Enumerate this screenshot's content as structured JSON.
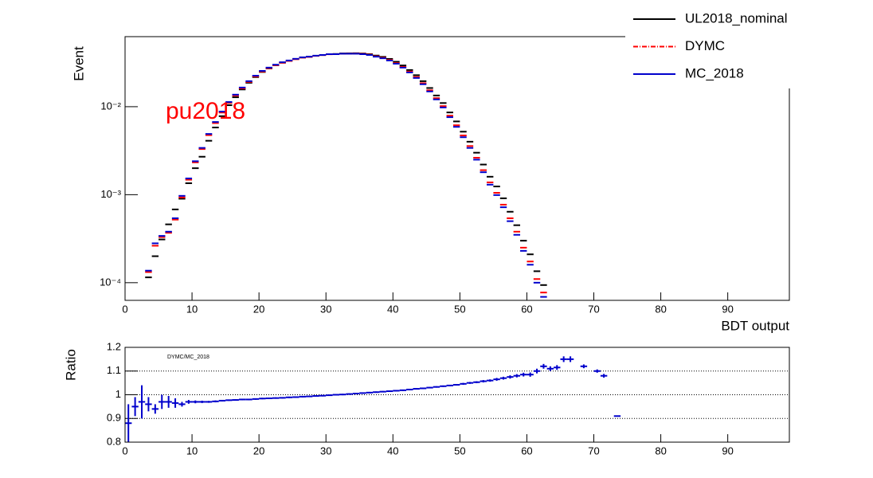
{
  "chart_data": [
    {
      "type": "errorbar",
      "log_y": true,
      "ylabel": "Event",
      "xlabel": "BDT output",
      "annotation": "pu2018",
      "annotation_color": "#ff0000",
      "legend": "top-right",
      "xlim": [
        0,
        99.2
      ],
      "xticks": [
        0,
        10,
        20,
        30,
        40,
        50,
        60,
        70,
        80,
        90
      ],
      "ylim": [
        6.3e-05,
        0.0625
      ],
      "yticks": [
        {
          "value": 0.0001,
          "label": "10⁻⁴"
        },
        {
          "value": 0.001,
          "label": "10⁻³"
        },
        {
          "value": 0.01,
          "label": "10⁻²"
        }
      ],
      "x": [
        3.5,
        4.5,
        5.5,
        6.5,
        7.5,
        8.5,
        9.5,
        10.5,
        11.5,
        12.5,
        13.5,
        14.5,
        15.5,
        16.5,
        17.5,
        18.5,
        19.5,
        20.5,
        21.5,
        22.5,
        23.5,
        24.5,
        25.5,
        26.5,
        27.5,
        28.5,
        29.5,
        30.5,
        31.5,
        32.5,
        33.5,
        34.5,
        35.5,
        36.5,
        37.5,
        38.5,
        39.5,
        40.5,
        41.5,
        42.5,
        43.5,
        44.5,
        45.5,
        46.5,
        47.5,
        48.5,
        49.5,
        50.5,
        51.5,
        52.5,
        53.5,
        54.5,
        55.5,
        56.5,
        57.5,
        58.5,
        59.5,
        60.5,
        61.5,
        62.5
      ],
      "series": [
        {
          "name": "UL2018_nominal",
          "color": "#000000",
          "dash": "solid",
          "values": [
            0.000115,
            0.0002,
            0.00031,
            0.00046,
            0.00068,
            0.0009,
            0.00135,
            0.002,
            0.0027,
            0.0041,
            0.0058,
            0.0078,
            0.0104,
            0.0128,
            0.0157,
            0.0187,
            0.0217,
            0.0248,
            0.0272,
            0.0295,
            0.0316,
            0.0332,
            0.0348,
            0.0362,
            0.0369,
            0.0379,
            0.0387,
            0.0395,
            0.0397,
            0.0403,
            0.0404,
            0.0405,
            0.0402,
            0.0395,
            0.0381,
            0.0368,
            0.0349,
            0.0324,
            0.0294,
            0.0261,
            0.0228,
            0.0195,
            0.0163,
            0.0134,
            0.011,
            0.0086,
            0.0068,
            0.0052,
            0.004,
            0.003,
            0.0022,
            0.0016,
            0.00124,
            0.00091,
            0.00064,
            0.00045,
            0.0003,
            0.00021,
            0.000135,
            9.4e-05
          ]
        },
        {
          "name": "DYMC",
          "color": "#ff0000",
          "dash": "dash-dot",
          "values": [
            0.000132,
            0.000263,
            0.00033,
            0.000369,
            0.000521,
            0.000931,
            0.00148,
            0.00233,
            0.0033,
            0.00475,
            0.00651,
            0.00858,
            0.01104,
            0.0134,
            0.01617,
            0.01911,
            0.0221,
            0.02509,
            0.02738,
            0.02958,
            0.03158,
            0.03313,
            0.03465,
            0.03611,
            0.03674,
            0.03781,
            0.03855,
            0.03942,
            0.0395,
            0.04004,
            0.04012,
            0.0402,
            0.03978,
            0.03905,
            0.03741,
            0.03596,
            0.034,
            0.03132,
            0.02833,
            0.02504,
            0.02173,
            0.01849,
            0.01535,
            0.0125,
            0.01015,
            0.0079,
            0.00615,
            0.00471,
            0.00357,
            0.00263,
            0.0019,
            0.00138,
            0.00105,
            0.00077,
            0.00054,
            0.00038,
            0.00025,
            0.000174,
            0.00011,
            7.73e-05
          ]
        },
        {
          "name": "MC_2018",
          "color": "#0000cc",
          "dash": "solid",
          "values": [
            0.000137,
            0.00028,
            0.00034,
            0.00038,
            0.00054,
            0.00097,
            0.00153,
            0.0024,
            0.0034,
            0.0049,
            0.0067,
            0.0088,
            0.0113,
            0.0137,
            0.0165,
            0.0195,
            0.0225,
            0.0255,
            0.0278,
            0.03,
            0.032,
            0.0335,
            0.035,
            0.0364,
            0.037,
            0.038,
            0.0387,
            0.0395,
            0.0395,
            0.04,
            0.04,
            0.04,
            0.0395,
            0.0387,
            0.037,
            0.0355,
            0.0335,
            0.0308,
            0.0278,
            0.0245,
            0.0212,
            0.018,
            0.0149,
            0.0121,
            0.0098,
            0.0076,
            0.0059,
            0.0045,
            0.0034,
            0.0025,
            0.0018,
            0.0013,
            0.00099,
            0.00072,
            0.0005,
            0.00035,
            0.00023,
            0.00016,
            0.0001,
            6.9e-05
          ]
        }
      ]
    },
    {
      "type": "ratio",
      "log_y": false,
      "ylabel": "Ratio",
      "annotation": "DYMC/MC_2018",
      "annotation_color": "#000000",
      "grid_y": true,
      "xlim": [
        0,
        99.2
      ],
      "xticks": [
        0,
        10,
        20,
        30,
        40,
        50,
        60,
        70,
        80,
        90
      ],
      "ylim": [
        0.8,
        1.2
      ],
      "yticks": [
        0.8,
        0.9,
        1,
        1.1,
        1.2
      ],
      "x": [
        0.5,
        1.5,
        2.5,
        3.5,
        4.5,
        5.5,
        6.5,
        7.5,
        8.5,
        9.5,
        10.5,
        11.5,
        12.5,
        13.5,
        14.5,
        15.5,
        16.5,
        17.5,
        18.5,
        19.5,
        20.5,
        21.5,
        22.5,
        23.5,
        24.5,
        25.5,
        26.5,
        27.5,
        28.5,
        29.5,
        30.5,
        31.5,
        32.5,
        33.5,
        34.5,
        35.5,
        36.5,
        37.5,
        38.5,
        39.5,
        40.5,
        41.5,
        42.5,
        43.5,
        44.5,
        45.5,
        46.5,
        47.5,
        48.5,
        49.5,
        50.5,
        51.5,
        52.5,
        53.5,
        54.5,
        55.5,
        56.5,
        57.5,
        58.5,
        59.5,
        60.5,
        61.5,
        62.5,
        63.5,
        64.5,
        65.5,
        66.5,
        67.5,
        68.5,
        69.5,
        70.5,
        71.5,
        72.5,
        73.5
      ],
      "series": [
        {
          "color": "#0000cc",
          "values": [
            0.88,
            0.95,
            0.97,
            0.96,
            0.94,
            0.97,
            0.97,
            0.965,
            0.96,
            0.97,
            0.97,
            0.97,
            0.97,
            0.972,
            0.975,
            0.977,
            0.978,
            0.98,
            0.98,
            0.982,
            0.984,
            0.985,
            0.986,
            0.987,
            0.989,
            0.99,
            0.992,
            0.993,
            0.995,
            0.996,
            0.998,
            1.0,
            1.001,
            1.003,
            1.005,
            1.007,
            1.009,
            1.011,
            1.013,
            1.015,
            1.017,
            1.019,
            1.022,
            1.025,
            1.027,
            1.03,
            1.033,
            1.036,
            1.039,
            1.042,
            1.046,
            1.05,
            1.053,
            1.057,
            1.06,
            1.065,
            1.07,
            1.075,
            1.08,
            1.085,
            1.085,
            1.1,
            1.12,
            1.11,
            1.115,
            1.15,
            1.15,
            null,
            1.12,
            null,
            1.1,
            1.08,
            null,
            0.91
          ],
          "errors": [
            0.08,
            0.04,
            0.07,
            0.03,
            0.02,
            0.03,
            0.025,
            0.02,
            0.01,
            0.008,
            0.006,
            0.005,
            0.004,
            0.004,
            0.003,
            0.003,
            0.003,
            0.003,
            0.003,
            0.003,
            0.003,
            0.003,
            0.003,
            0.003,
            0.003,
            0.003,
            0.003,
            0.003,
            0.003,
            0.003,
            0.003,
            0.003,
            0.003,
            0.003,
            0.003,
            0.003,
            0.003,
            0.003,
            0.003,
            0.003,
            0.003,
            0.003,
            0.003,
            0.003,
            0.003,
            0.003,
            0.003,
            0.003,
            0.003,
            0.003,
            0.004,
            0.004,
            0.004,
            0.005,
            0.005,
            0.006,
            0.006,
            0.007,
            0.007,
            0.008,
            0.009,
            0.01,
            0.01,
            0.01,
            0.01,
            0.012,
            0.012,
            null,
            0.008,
            null,
            0.007,
            0.008,
            null,
            0.002
          ]
        }
      ]
    }
  ]
}
